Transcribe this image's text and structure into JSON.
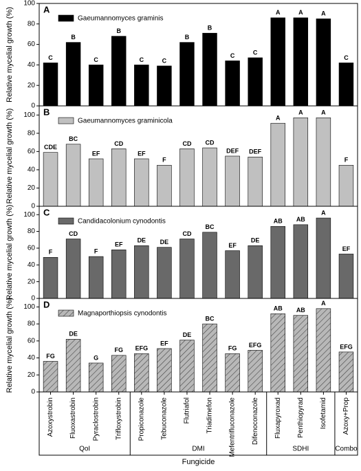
{
  "chart_data": [
    {
      "type": "bar",
      "panel": "A",
      "ylabel": "Relative mycelial growth (%)",
      "legend": "Gaeumannomyces graminis",
      "color": "#000000",
      "hatch": false,
      "ylim": [
        0,
        100
      ],
      "yticks": [
        0,
        20,
        40,
        60,
        80,
        100
      ],
      "values": [
        42,
        62,
        40,
        68,
        40,
        39,
        62,
        71,
        44,
        47,
        86,
        86,
        85,
        42
      ],
      "letters": [
        "C",
        "B",
        "C",
        "B",
        "C",
        "C",
        "B",
        "B",
        "C",
        "C",
        "A",
        "A",
        "A",
        "C"
      ]
    },
    {
      "type": "bar",
      "panel": "B",
      "ylabel": "Relative mycelial growth (%)",
      "legend": "Gaeumannomyces graminicola",
      "color": "#c0c0c0",
      "hatch": false,
      "ylim": [
        0,
        110
      ],
      "yticks": [
        0,
        20,
        40,
        60,
        80,
        100
      ],
      "values": [
        59,
        68,
        52,
        63,
        52,
        45,
        63,
        64,
        55,
        54,
        91,
        97,
        97,
        45
      ],
      "letters": [
        "CDE",
        "BC",
        "EF",
        "CD",
        "EF",
        "F",
        "CD",
        "CD",
        "DEF",
        "DEF",
        "A",
        "A",
        "A",
        "F"
      ]
    },
    {
      "type": "bar",
      "panel": "C",
      "ylabel": "Relative mycelial growth (%)",
      "legend": "Candidacolonium cynodontis",
      "color": "#696969",
      "hatch": false,
      "ylim": [
        0,
        110
      ],
      "yticks": [
        0,
        20,
        40,
        60,
        80,
        100
      ],
      "values": [
        49,
        71,
        50,
        58,
        63,
        61,
        71,
        79,
        57,
        63,
        86,
        88,
        96,
        53
      ],
      "letters": [
        "F",
        "CD",
        "F",
        "EF",
        "DE",
        "DE",
        "CD",
        "BC",
        "EF",
        "DE",
        "AB",
        "AB",
        "A",
        "EF"
      ]
    },
    {
      "type": "bar",
      "panel": "D",
      "ylabel": "Relative mycelial growth (%)",
      "legend": "Magnaporthiopsis cynodontis",
      "color": "#b8b8b8",
      "hatch": true,
      "ylim": [
        0,
        110
      ],
      "yticks": [
        0,
        20,
        40,
        60,
        80,
        100
      ],
      "values": [
        36,
        62,
        34,
        43,
        45,
        51,
        61,
        80,
        45,
        49,
        92,
        90,
        98,
        47
      ],
      "letters": [
        "FG",
        "DE",
        "G",
        "FG",
        "EFG",
        "EF",
        "DE",
        "BC",
        "FG",
        "EFG",
        "AB",
        "AB",
        "A",
        "EFG"
      ],
      "xlabel": "Fungicide",
      "groups": [
        {
          "label": "QoI",
          "categories": [
            "Azoxystrobin",
            "Fluoxastrobin",
            "Pyraclostrobin",
            "Trifloxystrobin"
          ]
        },
        {
          "label": "DMI",
          "categories": [
            "Propiconazole",
            "Tebuconazole",
            "Flutriafol",
            "Triadimefon",
            "Mefentrifluconazole",
            "Difenoconazole"
          ]
        },
        {
          "label": "SDHI",
          "categories": [
            "Fluxapyroxad",
            "Penthiopyrad",
            "Isofetamid"
          ]
        },
        {
          "label": "Combo",
          "categories": [
            "Azoxy+Prop"
          ]
        }
      ]
    }
  ]
}
